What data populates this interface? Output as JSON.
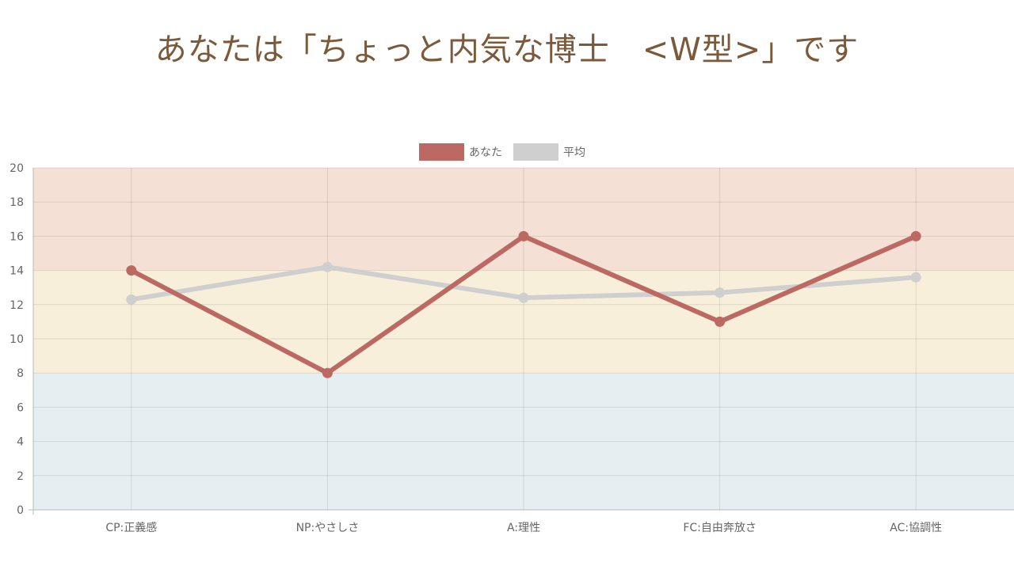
{
  "page_title": "あなたは「ちょっと内気な博士　<W型>」です",
  "chart_data": {
    "type": "line",
    "categories": [
      "CP:正義感",
      "NP:やさしさ",
      "A:理性",
      "FC:自由奔放さ",
      "AC:協調性"
    ],
    "series": [
      {
        "name": "あなた",
        "values": [
          14,
          8,
          16,
          11,
          16
        ],
        "color": "#bb6962"
      },
      {
        "name": "平均",
        "values": [
          12.3,
          14.2,
          12.4,
          12.7,
          13.6
        ],
        "color": "#cfcfcf"
      }
    ],
    "ylim": [
      0,
      20
    ],
    "ytick_step": 2,
    "grid": true,
    "legend_position": "top-center",
    "bands": [
      {
        "from": 14,
        "to": 20,
        "color": "#f4e0d4"
      },
      {
        "from": 8,
        "to": 14,
        "color": "#f8efdb"
      },
      {
        "from": 0,
        "to": 8,
        "color": "#e5eff1"
      }
    ]
  }
}
